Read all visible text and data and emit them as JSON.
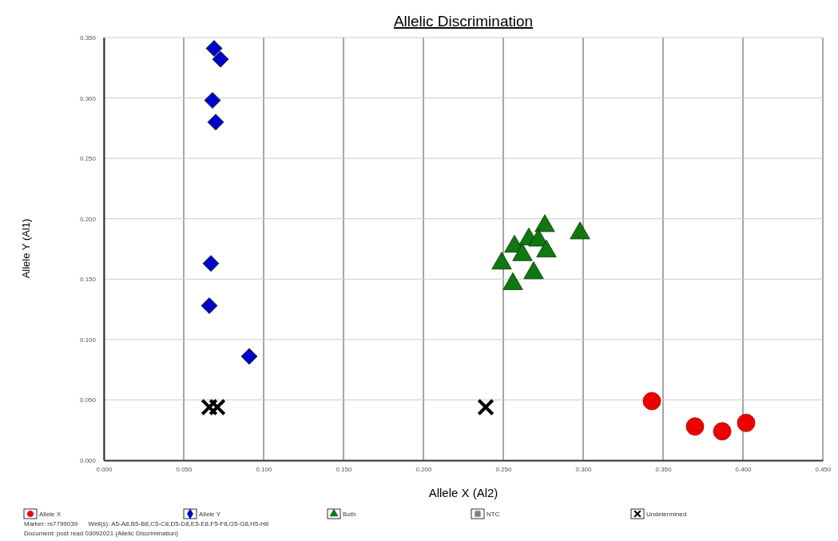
{
  "chart_data": {
    "type": "scatter",
    "title": "Allelic Discrimination",
    "xlabel": "Allele X (Al2)",
    "ylabel": "Allele Y (Al1)",
    "xlim": [
      0,
      0.45
    ],
    "ylim": [
      0,
      0.35
    ],
    "xticks": [
      {
        "value": 0,
        "label": "0.000"
      },
      {
        "value": 0.05,
        "label": "0.050"
      },
      {
        "value": 0.1,
        "label": "0.100"
      },
      {
        "value": 0.15,
        "label": "0.150"
      },
      {
        "value": 0.2,
        "label": "0.200"
      },
      {
        "value": 0.25,
        "label": "0.250"
      },
      {
        "value": 0.3,
        "label": "0.300"
      },
      {
        "value": 0.35,
        "label": "0.350"
      },
      {
        "value": 0.4,
        "label": "0.400"
      },
      {
        "value": 0.45,
        "label": "0.450"
      }
    ],
    "yticks": [
      {
        "value": 0,
        "label": "0.000"
      },
      {
        "value": 0.05,
        "label": "0.050"
      },
      {
        "value": 0.1,
        "label": "0.100"
      },
      {
        "value": 0.15,
        "label": "0.150"
      },
      {
        "value": 0.2,
        "label": "0.200"
      },
      {
        "value": 0.25,
        "label": "0.250"
      },
      {
        "value": 0.3,
        "label": "0.300"
      },
      {
        "value": 0.35,
        "label": "0.350"
      }
    ],
    "grid": true,
    "legend": "bottom",
    "series": [
      {
        "name": "Allele X",
        "color": "#ee0000",
        "marker": "circle",
        "x": [
          0.343,
          0.37,
          0.387,
          0.402
        ],
        "values": [
          0.049,
          0.028,
          0.024,
          0.031
        ]
      },
      {
        "name": "Allele Y",
        "color": "#0000cc",
        "marker": "diamond",
        "x": [
          0.069,
          0.073,
          0.068,
          0.07,
          0.067,
          0.066,
          0.091
        ],
        "values": [
          0.341,
          0.332,
          0.298,
          0.28,
          0.163,
          0.128,
          0.086
        ]
      },
      {
        "name": "Both",
        "color": "#117711",
        "marker": "triangle",
        "x": [
          0.276,
          0.298,
          0.266,
          0.272,
          0.257,
          0.277,
          0.262,
          0.249,
          0.269,
          0.256
        ],
        "values": [
          0.194,
          0.188,
          0.183,
          0.182,
          0.177,
          0.173,
          0.17,
          0.163,
          0.155,
          0.146
        ]
      },
      {
        "name": "NTC",
        "color": "#808080",
        "marker": "square"
      },
      {
        "name": "Undetermined",
        "color": "#000000",
        "marker": "cross",
        "x": [
          0.066,
          0.071,
          0.239
        ],
        "values": [
          0.044,
          0.044,
          0.044
        ]
      }
    ],
    "annotations": [
      "Marker: rs7799039      Well(s): A5-A8,B5-B8,C5-C8,D5-D8,E5-E8,F5-F8,G5-G8,H5-H8",
      "Document: post read 03092021 (Allelic Discrimination)"
    ]
  }
}
